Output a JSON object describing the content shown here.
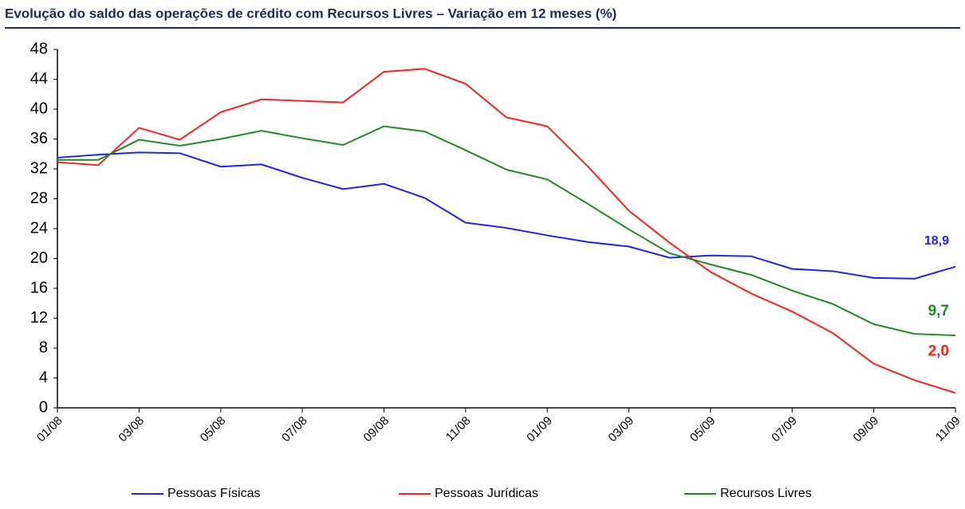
{
  "chart_data": {
    "type": "line",
    "title": "Evolução do saldo das operações de crédito com Recursos Livres – Variação em 12 meses (%)",
    "categories": [
      "01/08",
      null,
      "03/08",
      null,
      "05/08",
      null,
      "07/08",
      null,
      "09/08",
      null,
      "11/08",
      null,
      "01/09",
      null,
      "03/09",
      null,
      "05/09",
      null,
      "07/09",
      null,
      "09/09",
      null,
      "11/09"
    ],
    "series": [
      {
        "name": "Pessoas Físicas",
        "color": "#1f1fff",
        "values": [
          33.5,
          33.9,
          34.2,
          34.1,
          32.3,
          32.6,
          30.8,
          29.3,
          30.0,
          28.1,
          24.8,
          24.1,
          23.1,
          22.2,
          21.6,
          20.1,
          20.4,
          20.3,
          18.6,
          18.3,
          17.4,
          17.3,
          18.9
        ],
        "value_labels": [
          null,
          null,
          null,
          null,
          null,
          null,
          null,
          null,
          null,
          null,
          null,
          null,
          null,
          null,
          null,
          null,
          null,
          null,
          null,
          null,
          null,
          null,
          "18,9"
        ]
      },
      {
        "name": "Pessoas Jurídicas",
        "color": "#ff1f1f",
        "values": [
          32.9,
          32.5,
          37.5,
          35.9,
          39.6,
          41.3,
          41.1,
          40.9,
          45.0,
          45.4,
          43.4,
          38.9,
          37.7,
          32.3,
          26.4,
          22.1,
          18.2,
          15.3,
          12.9,
          10.0,
          5.9,
          3.7,
          2.0
        ],
        "value_labels": [
          null,
          null,
          null,
          null,
          null,
          null,
          null,
          null,
          null,
          null,
          null,
          null,
          null,
          null,
          null,
          null,
          null,
          null,
          null,
          null,
          null,
          null,
          "2,0"
        ]
      },
      {
        "name": "Recursos Livres",
        "color": "#1f8a1f",
        "values": [
          33.2,
          33.2,
          35.9,
          35.1,
          36.0,
          37.1,
          36.1,
          35.2,
          37.7,
          37.0,
          34.5,
          31.9,
          30.6,
          27.3,
          23.9,
          20.7,
          19.2,
          17.8,
          15.7,
          13.9,
          11.2,
          9.9,
          9.7
        ],
        "value_labels": [
          null,
          null,
          null,
          null,
          null,
          null,
          null,
          null,
          null,
          null,
          null,
          null,
          null,
          null,
          null,
          null,
          null,
          null,
          null,
          null,
          null,
          null,
          "9,7"
        ]
      }
    ],
    "ylim": [
      0,
      48
    ],
    "yticks": [
      0,
      4,
      8,
      12,
      16,
      20,
      24,
      28,
      32,
      36,
      40,
      44,
      48
    ],
    "grid": false
  }
}
